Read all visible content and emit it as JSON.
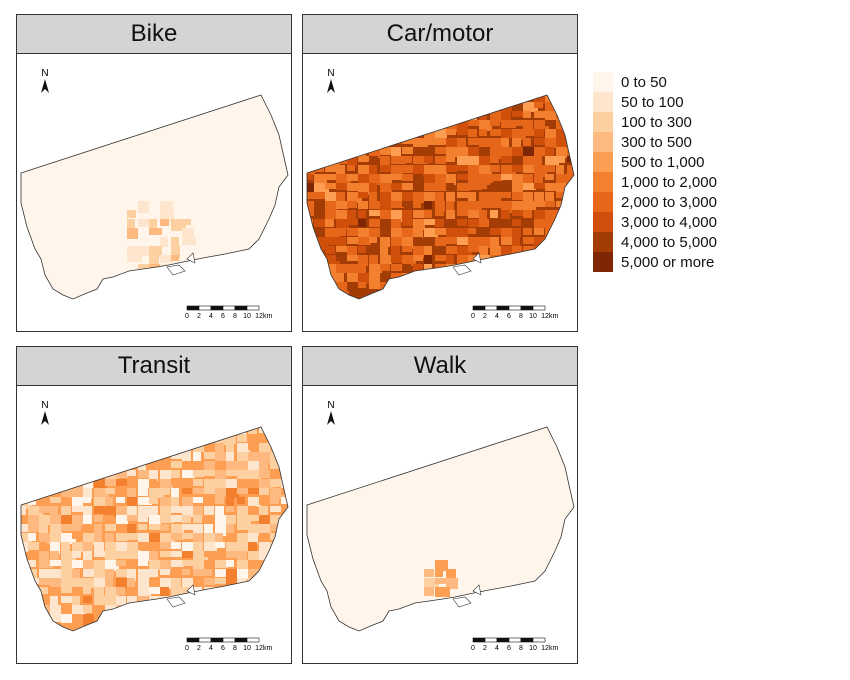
{
  "panels": [
    {
      "id": "bike",
      "title": "Bike"
    },
    {
      "id": "car",
      "title": "Car/motor"
    },
    {
      "id": "transit",
      "title": "Transit"
    },
    {
      "id": "walk",
      "title": "Walk"
    }
  ],
  "north_label": "N",
  "scale_bar": {
    "ticks": [
      "0",
      "2",
      "4",
      "6",
      "8",
      "10",
      "12"
    ],
    "unit": "km"
  },
  "legend": {
    "classes": [
      {
        "label": "0 to 50",
        "color": "#fff5eb"
      },
      {
        "label": "50 to 100",
        "color": "#fee6ce"
      },
      {
        "label": "100 to 300",
        "color": "#fdd0a2"
      },
      {
        "label": "300 to 500",
        "color": "#fdb97f"
      },
      {
        "label": "500 to 1,000",
        "color": "#fd9e52"
      },
      {
        "label": "1,000 to 2,000",
        "color": "#f3802f"
      },
      {
        "label": "2,000 to 3,000",
        "color": "#e6661a"
      },
      {
        "label": "3,000 to 4,000",
        "color": "#cf4f0b"
      },
      {
        "label": "4,000 to 5,000",
        "color": "#a43c06"
      },
      {
        "label": "5,000 or more",
        "color": "#7f2704"
      }
    ]
  }
}
